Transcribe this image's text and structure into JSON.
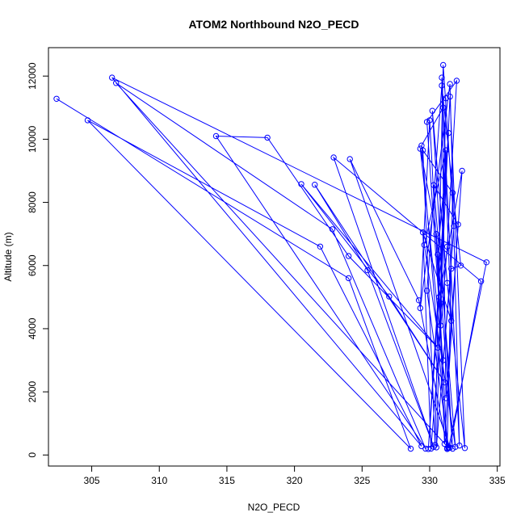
{
  "chart_data": {
    "type": "scatter",
    "title": "ATOM2 Northbound N2O_PECD",
    "xlabel": "N2O_PECD",
    "ylabel": "Altitude (m)",
    "xlim": [
      301.8,
      335.2
    ],
    "ylim": [
      -350,
      12900
    ],
    "xticks": [
      305,
      310,
      315,
      320,
      325,
      330,
      335
    ],
    "yticks": [
      0,
      2000,
      4000,
      6000,
      8000,
      10000,
      12000
    ],
    "grid": false,
    "legend": "none",
    "color": "#0000ff",
    "series": [
      {
        "style": "both",
        "x": [
          302.4,
          324.0,
          328.6,
          304.7,
          321.9,
          329.4,
          306.5,
          334.2,
          331.4,
          306.8,
          322.8,
          329.7,
          314.2,
          318.0,
          324.0,
          330.6,
          320.5,
          327.0,
          331.1,
          321.5,
          325.4,
          330.3,
          322.9,
          333.8,
          331.5,
          324.1,
          329.2,
          331.3,
          329.4,
          331.0,
          332.2,
          331.5,
          329.3,
          330.0,
          331.3,
          331.7,
          329.5,
          330.4,
          331.0,
          331.8,
          330.5,
          331.2,
          330.8,
          329.8,
          332.0,
          331.3,
          330.1,
          329.5,
          331.6,
          330.9,
          331.2,
          332.4,
          330.7,
          329.9,
          331.4,
          330.6,
          331.1,
          332.1,
          330.3,
          331.9,
          329.6,
          331.2,
          330.8,
          331.5,
          332.6,
          331.3,
          330.2,
          331.7,
          330.5,
          329.3,
          331.0,
          331.6,
          332.3,
          330.9,
          329.8,
          331.4
        ],
        "y": [
          11280,
          5600,
          200,
          10600,
          6600,
          280,
          11950,
          6100,
          220,
          11780,
          7150,
          200,
          10100,
          10050,
          6300,
          3400,
          8580,
          5020,
          2300,
          8560,
          5850,
          260,
          9420,
          5500,
          230,
          9370,
          4900,
          190,
          9800,
          11000,
          300,
          11750,
          4650,
          10600,
          220,
          8300,
          9650,
          320,
          12350,
          7250,
          240,
          11300,
          4100,
          10550,
          11850,
          6600,
          200,
          7050,
          4250,
          11950,
          1800,
          9000,
          5000,
          190,
          10200,
          6350,
          350,
          7300,
          8550,
          260,
          6650,
          9650,
          4800,
          11350,
          220,
          5450,
          10900,
          200,
          7000,
          9700,
          3000,
          5900,
          6000,
          11700,
          5200,
          240
        ]
      }
    ]
  }
}
